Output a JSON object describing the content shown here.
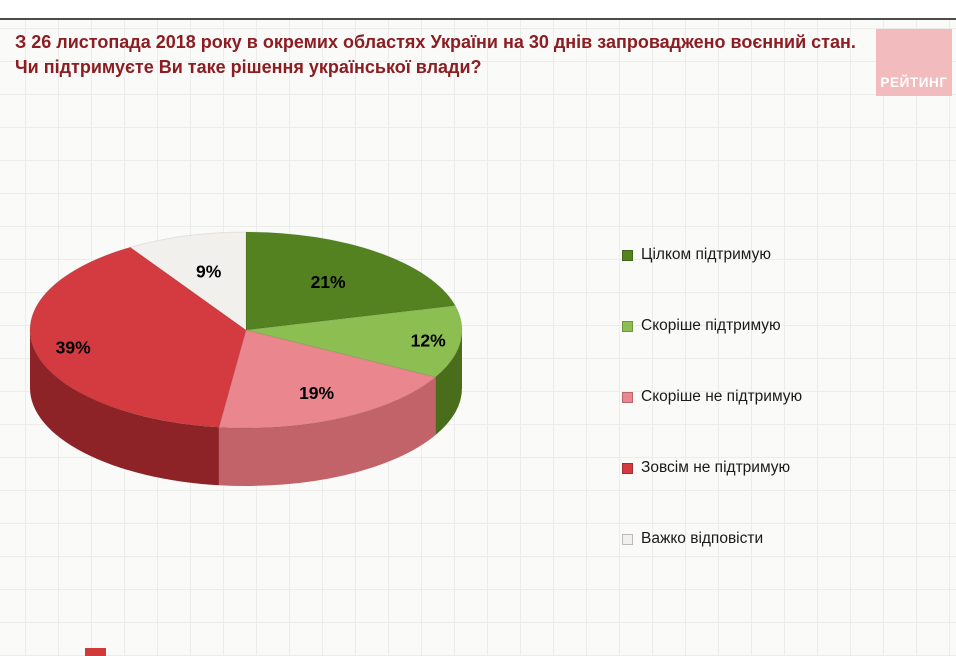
{
  "header": {
    "title": "З 26 листопада 2018 року в окремих областях України на 30 днів запроваджено воєнний стан. Чи підтримуєте Ви таке рішення української влади?",
    "logo_text": "РЕЙТИНГ"
  },
  "chart_data": {
    "type": "pie",
    "style": "3d",
    "title": "З 26 листопада 2018 року в окремих областях України на 30 днів запроваджено воєнний стан. Чи підтримуєте Ви таке рішення української влади?",
    "unit": "%",
    "labels": [
      "Цілком підтримую",
      "Скоріше підтримую",
      "Скоріше  не підтримую",
      "Зовсім не підтримую",
      "Важко відповісти"
    ],
    "values": [
      21,
      12,
      19,
      39,
      9
    ],
    "colors": [
      "#548220",
      "#8cbe52",
      "#e9868e",
      "#d33b40",
      "#f1f0ed"
    ],
    "side_colors": [
      "#3c5d15",
      "#4a6d1c",
      "#c2636a",
      "#8e2327",
      "#cfcdc8"
    ],
    "start_angle_deg": -90,
    "direction": "clockwise",
    "legend_position": "right",
    "label_radius": [
      0.62,
      0.85,
      0.72,
      0.82,
      0.62
    ],
    "accent_colors": {
      "title_text": "#8c1d22",
      "logo_bg": "#f2bcbf",
      "footer_strip": "#cf3a3a"
    }
  }
}
